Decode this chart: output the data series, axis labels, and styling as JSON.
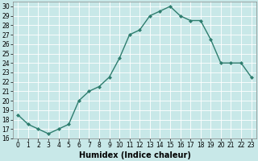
{
  "x": [
    0,
    1,
    2,
    3,
    4,
    5,
    6,
    7,
    8,
    9,
    10,
    11,
    12,
    13,
    14,
    15,
    16,
    17,
    18,
    19,
    20,
    21,
    22,
    23
  ],
  "y": [
    18.5,
    17.5,
    17.0,
    16.5,
    17.0,
    17.5,
    20.0,
    21.0,
    21.5,
    22.5,
    24.5,
    27.0,
    27.5,
    29.0,
    29.5,
    30.0,
    29.0,
    28.5,
    28.5,
    26.5,
    24.0,
    24.0,
    24.0,
    22.5
  ],
  "line_color": "#2e7d6e",
  "marker": "D",
  "marker_size": 2.0,
  "bg_color": "#c8e8e8",
  "grid_color": "#b0d8d8",
  "xlabel": "Humidex (Indice chaleur)",
  "xlim": [
    -0.5,
    23.5
  ],
  "ylim": [
    16,
    30.5
  ],
  "yticks": [
    16,
    17,
    18,
    19,
    20,
    21,
    22,
    23,
    24,
    25,
    26,
    27,
    28,
    29,
    30
  ],
  "xticks": [
    0,
    1,
    2,
    3,
    4,
    5,
    6,
    7,
    8,
    9,
    10,
    11,
    12,
    13,
    14,
    15,
    16,
    17,
    18,
    19,
    20,
    21,
    22,
    23
  ],
  "tick_fontsize": 5.5,
  "xlabel_fontsize": 7.0,
  "line_width": 1.0
}
